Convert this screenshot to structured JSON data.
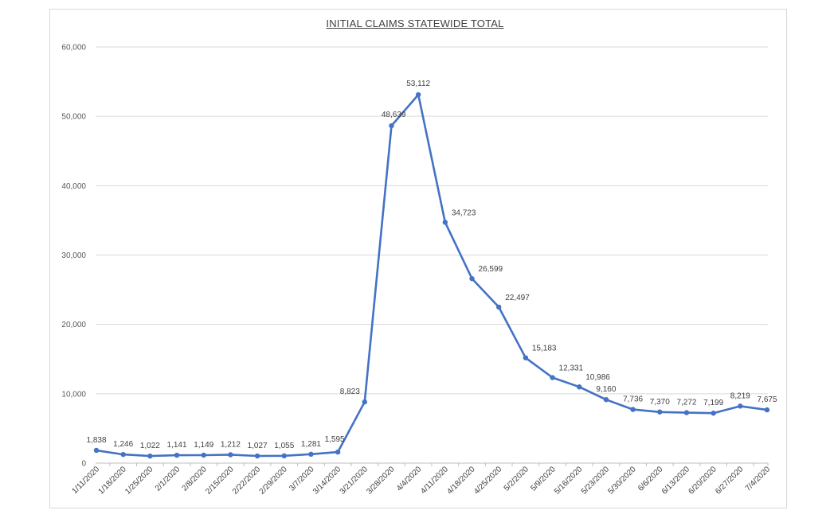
{
  "chart_data": {
    "type": "line",
    "title": "INITIAL CLAIMS STATEWIDE TOTAL",
    "xlabel": "",
    "ylabel": "",
    "ylim": [
      0,
      60000
    ],
    "yticks": [
      "0",
      "10,000",
      "20,000",
      "30,000",
      "40,000",
      "50,000",
      "60,000"
    ],
    "grid": "horizontal",
    "line_color": "#4472c4",
    "categories": [
      "1/11/2020",
      "1/18/2020",
      "1/25/2020",
      "2/1/2020",
      "2/8/2020",
      "2/15/2020",
      "2/22/2020",
      "2/29/2020",
      "3/7/2020",
      "3/14/2020",
      "3/21/2020",
      "3/28/2020",
      "4/4/2020",
      "4/11/2020",
      "4/18/2020",
      "4/25/2020",
      "5/2/2020",
      "5/9/2020",
      "5/16/2020",
      "5/23/2020",
      "5/30/2020",
      "6/6/2020",
      "6/13/2020",
      "6/20/2020",
      "6/27/2020",
      "7/4/2020"
    ],
    "series": [
      {
        "values": [
          1838,
          1246,
          1022,
          1141,
          1149,
          1212,
          1027,
          1055,
          1281,
          1595,
          8823,
          48639,
          53112,
          34723,
          26599,
          22497,
          15183,
          12331,
          10986,
          9160,
          7736,
          7370,
          7272,
          7199,
          8219,
          7675
        ],
        "labels": [
          "1,838",
          "1,246",
          "1,022",
          "1,141",
          "1,149",
          "1,212",
          "1,027",
          "1,055",
          "1,281",
          "1,595",
          "8,823",
          "48,639",
          "53,112",
          "34,723",
          "26,599",
          "22,497",
          "15,183",
          "12,331",
          "10,986",
          "9,160",
          "7,736",
          "7,370",
          "7,272",
          "7,199",
          "8,219",
          "7,675"
        ]
      }
    ]
  }
}
